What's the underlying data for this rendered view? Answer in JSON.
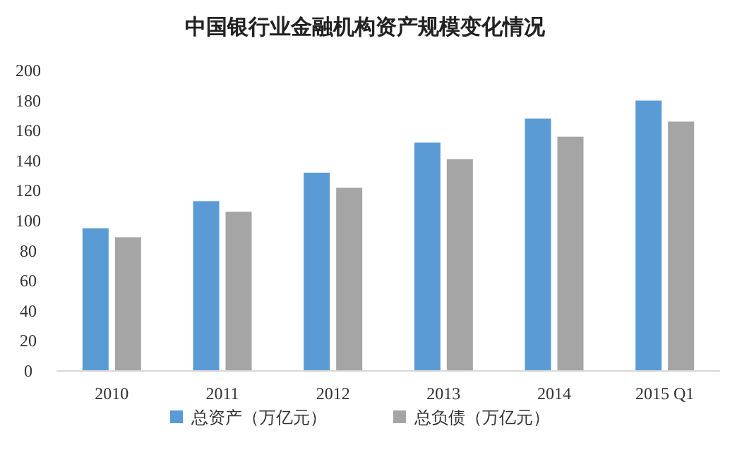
{
  "chart_data": {
    "type": "bar",
    "title": "中国银行业金融机构资产规模变化情况",
    "categories": [
      "2010",
      "2011",
      "2012",
      "2013",
      "2014",
      "2015 Q1"
    ],
    "series": [
      {
        "name": "总资产（万亿元）",
        "color": "#5b9bd5",
        "values": [
          95,
          113,
          132,
          152,
          168,
          180
        ]
      },
      {
        "name": "总负债（万亿元）",
        "color": "#a5a5a5",
        "values": [
          89,
          106,
          122,
          141,
          156,
          166
        ]
      }
    ],
    "ylim": [
      0,
      200
    ],
    "yticks": [
      0,
      20,
      40,
      60,
      80,
      100,
      120,
      140,
      160,
      180,
      200
    ],
    "grid": false,
    "legend": "bottom"
  }
}
